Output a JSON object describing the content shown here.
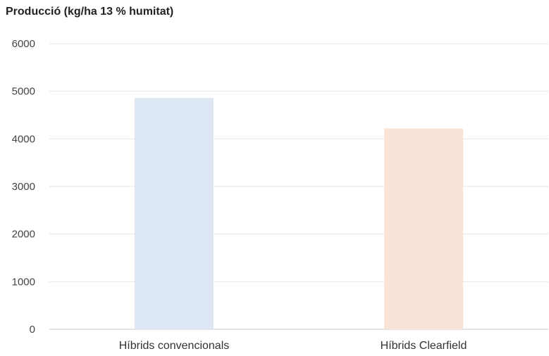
{
  "chart_data": {
    "type": "bar",
    "title": "Producció (kg/ha 13 % humitat)",
    "categories": [
      "Híbrids convencionals",
      "Híbrids Clearfield"
    ],
    "values": [
      4860,
      4220
    ],
    "colors": [
      "#dee8f4",
      "#fae4d7"
    ],
    "ylim": [
      0,
      6000
    ],
    "yticks": [
      0,
      1000,
      2000,
      3000,
      4000,
      5000,
      6000
    ],
    "grid": true,
    "legend": "none",
    "xlabel": "",
    "ylabel": ""
  }
}
